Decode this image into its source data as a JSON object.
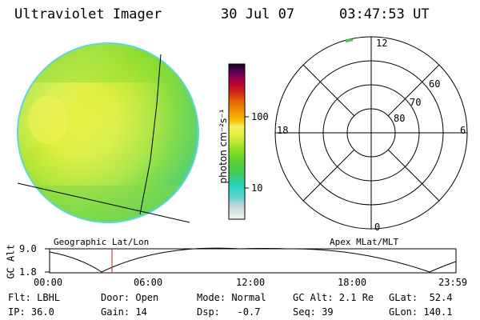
{
  "header": {
    "title": "Ultraviolet Imager",
    "date": "30 Jul 07",
    "time": "03:47:53 UT"
  },
  "colorbar": {
    "unit_label": "photon cm⁻²s⁻¹",
    "ticks": [
      "100",
      "10"
    ],
    "stops": [
      "#eef1f2",
      "#c9d8dd",
      "#6fd8d2",
      "#27d4c4",
      "#38cc66",
      "#5ad22b",
      "#9be32a",
      "#e3f23e",
      "#f3e23a",
      "#f2a400",
      "#f07a00",
      "#dd2b0e",
      "#c3002f",
      "#90004a",
      "#4a0050",
      "#140020"
    ]
  },
  "polar_plot": {
    "labels": {
      "top": "12",
      "right": "6",
      "left": "18",
      "bottom": "0",
      "ring_60": "60",
      "ring_70": "70",
      "ring_80": "80"
    }
  },
  "image_labels": {
    "left_caption": "Geographic Lat/Lon",
    "right_caption": "Apex MLat/MLT"
  },
  "altitude_plot": {
    "axis_label": "GC Alt",
    "y_ticks": [
      "9.0",
      "1.8"
    ],
    "x_ticks": [
      "00:00",
      "06:00",
      "12:00",
      "18:00",
      "23:59"
    ]
  },
  "footer": {
    "row1": {
      "flt": "Flt: LBHL",
      "door": "Door: Open",
      "mode": "Mode: Normal",
      "gc_alt": "GC Alt: 2.1 Re",
      "glat": "GLat:  52.4"
    },
    "row2": {
      "ip": "IP: 36.0",
      "gain": "Gain: 14",
      "dsp": "Dsp:   -0.7",
      "seq": "Seq: 39",
      "glon": "GLon: 140.1"
    }
  },
  "colors": {
    "line": "#000000",
    "marker": "#c02020"
  }
}
